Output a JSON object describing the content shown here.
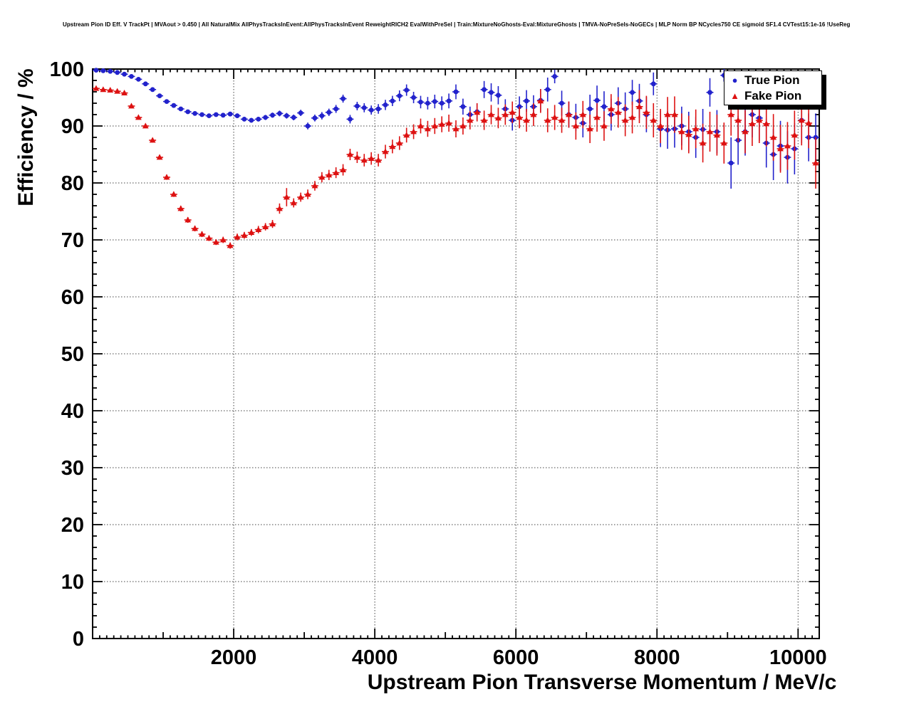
{
  "chart_data": {
    "type": "scatter",
    "title": "Upstream Pion ID Eff. V TrackPt | MVAout > 0.450 | All NaturalMix AllPhysTracksInEvent:AllPhysTracksInEvent ReweightRICH2 EvalWithPreSel | Train:MixtureNoGhosts-Eval:MixtureGhosts | TMVA-NoPreSels-NoGECs | MLP Norm BP NCycles750 CE sigmoid SF1.4 CVTest15:1e-16 !UseReg",
    "xlabel": "Upstream Pion Transverse Momentum / MeV/c",
    "ylabel": "Efficiency / %",
    "xlim": [
      0,
      10300
    ],
    "ylim": [
      0,
      100
    ],
    "x_ticks": [
      2000,
      4000,
      6000,
      8000,
      10000
    ],
    "y_ticks": [
      0,
      10,
      20,
      30,
      40,
      50,
      60,
      70,
      80,
      90,
      100
    ],
    "grid": "dotted",
    "legend_position": "top-right",
    "bin_width": 100,
    "x_start": 50,
    "series": [
      {
        "name": "True Pion",
        "marker": "circle",
        "color": "#2222cc",
        "y": [
          99.8,
          99.7,
          99.6,
          99.4,
          99.1,
          98.7,
          98.2,
          97.4,
          96.4,
          95.3,
          94.3,
          93.6,
          93.0,
          92.5,
          92.2,
          92.0,
          91.8,
          92.0,
          91.9,
          92.1,
          91.8,
          91.2,
          91.0,
          91.2,
          91.5,
          91.9,
          92.2,
          91.8,
          91.5,
          92.3,
          90.0,
          91.4,
          91.8,
          92.4,
          93.0,
          94.8,
          91.2,
          93.5,
          93.2,
          92.8,
          93.0,
          93.7,
          94.4,
          95.3,
          96.3,
          95.0,
          94.2,
          94.0,
          94.3,
          94.0,
          94.4,
          96.0,
          93.4,
          92.0,
          92.5,
          96.4,
          95.9,
          95.4,
          93.0,
          91.0,
          93.4,
          94.4,
          93.4,
          94.5,
          96.4,
          98.7,
          94.0,
          92.0,
          91.5,
          90.5,
          93.0,
          94.5,
          93.4,
          92.0,
          94.0,
          93.0,
          95.9,
          94.4,
          92.0,
          97.4,
          89.5,
          89.3,
          89.5,
          90.0,
          89.0,
          88.0,
          89.4,
          95.9,
          89.0,
          98.9,
          83.5,
          87.5,
          89.0,
          92.0,
          91.4,
          87.0,
          85.0,
          86.5,
          84.5,
          86.0,
          91.0,
          88.0,
          88.0
        ],
        "ey": [
          0.1,
          0.1,
          0.15,
          0.15,
          0.2,
          0.2,
          0.25,
          0.25,
          0.3,
          0.3,
          0.3,
          0.3,
          0.3,
          0.3,
          0.3,
          0.3,
          0.35,
          0.35,
          0.35,
          0.35,
          0.4,
          0.4,
          0.4,
          0.4,
          0.45,
          0.45,
          0.5,
          0.5,
          0.5,
          0.55,
          0.6,
          0.6,
          0.65,
          0.65,
          0.7,
          0.7,
          0.75,
          0.75,
          0.8,
          0.8,
          0.85,
          0.9,
          0.9,
          0.95,
          1.0,
          1.0,
          1.1,
          1.1,
          1.2,
          1.2,
          1.3,
          1.3,
          1.4,
          1.4,
          1.5,
          1.5,
          1.6,
          1.6,
          1.7,
          1.8,
          1.8,
          1.9,
          2.0,
          2.0,
          2.1,
          1.2,
          2.2,
          2.3,
          2.4,
          2.5,
          2.5,
          2.6,
          2.7,
          2.8,
          2.8,
          2.9,
          2.2,
          3.0,
          3.1,
          2.0,
          3.2,
          3.3,
          3.3,
          3.4,
          3.5,
          3.6,
          3.6,
          2.5,
          3.8,
          1.1,
          4.5,
          4.3,
          4.2,
          4.0,
          4.0,
          4.3,
          4.5,
          4.4,
          4.6,
          4.5,
          4.0,
          4.2,
          4.2
        ]
      },
      {
        "name": "Fake Pion",
        "marker": "triangle",
        "color": "#dd1111",
        "y": [
          96.6,
          96.4,
          96.3,
          96.1,
          95.8,
          93.5,
          91.5,
          90.0,
          87.5,
          84.5,
          81.0,
          78.0,
          75.5,
          73.5,
          72.0,
          71.0,
          70.3,
          69.6,
          70.0,
          69.0,
          70.5,
          70.8,
          71.3,
          71.8,
          72.3,
          72.8,
          75.5,
          77.5,
          76.5,
          77.5,
          78.0,
          79.5,
          81.0,
          81.4,
          81.8,
          82.3,
          85.0,
          84.5,
          84.0,
          84.3,
          84.0,
          85.5,
          86.4,
          87.0,
          88.4,
          89.0,
          90.0,
          89.5,
          90.0,
          90.3,
          90.5,
          89.5,
          90.0,
          91.0,
          92.4,
          91.0,
          92.0,
          91.4,
          92.0,
          92.4,
          91.5,
          91.0,
          92.0,
          94.4,
          91.0,
          91.5,
          91.0,
          92.0,
          90.0,
          92.0,
          89.5,
          91.5,
          90.0,
          93.0,
          92.4,
          91.0,
          91.5,
          93.4,
          92.4,
          91.0,
          90.0,
          92.0,
          92.0,
          89.0,
          88.5,
          89.5,
          87.0,
          89.0,
          88.4,
          87.0,
          92.0,
          91.0,
          89.0,
          90.4,
          91.0,
          90.4,
          88.0,
          86.0,
          86.5,
          88.4,
          91.0,
          90.5,
          83.5
        ],
        "ey": [
          0.15,
          0.15,
          0.2,
          0.2,
          0.25,
          0.3,
          0.3,
          0.35,
          0.4,
          0.4,
          0.45,
          0.45,
          0.5,
          0.5,
          0.5,
          0.5,
          0.5,
          0.5,
          0.55,
          0.55,
          0.6,
          0.6,
          0.6,
          0.65,
          0.65,
          0.7,
          0.9,
          1.6,
          0.8,
          0.8,
          0.85,
          0.85,
          0.9,
          0.9,
          0.95,
          1.0,
          1.0,
          1.0,
          1.1,
          1.1,
          1.1,
          1.2,
          1.2,
          1.2,
          1.3,
          1.3,
          1.3,
          1.4,
          1.4,
          1.4,
          1.5,
          1.5,
          1.5,
          1.6,
          1.6,
          1.7,
          1.7,
          1.8,
          1.8,
          1.9,
          1.9,
          2.0,
          2.0,
          2.1,
          2.1,
          2.2,
          2.2,
          2.3,
          2.4,
          2.4,
          2.5,
          2.5,
          2.6,
          2.6,
          2.7,
          2.8,
          2.8,
          2.9,
          2.9,
          3.0,
          3.0,
          3.1,
          3.2,
          3.2,
          3.3,
          3.4,
          3.4,
          3.5,
          3.6,
          3.6,
          3.7,
          3.8,
          3.8,
          3.9,
          4.0,
          4.0,
          4.1,
          4.2,
          4.2,
          4.3,
          4.4,
          4.4,
          4.5
        ]
      }
    ]
  }
}
